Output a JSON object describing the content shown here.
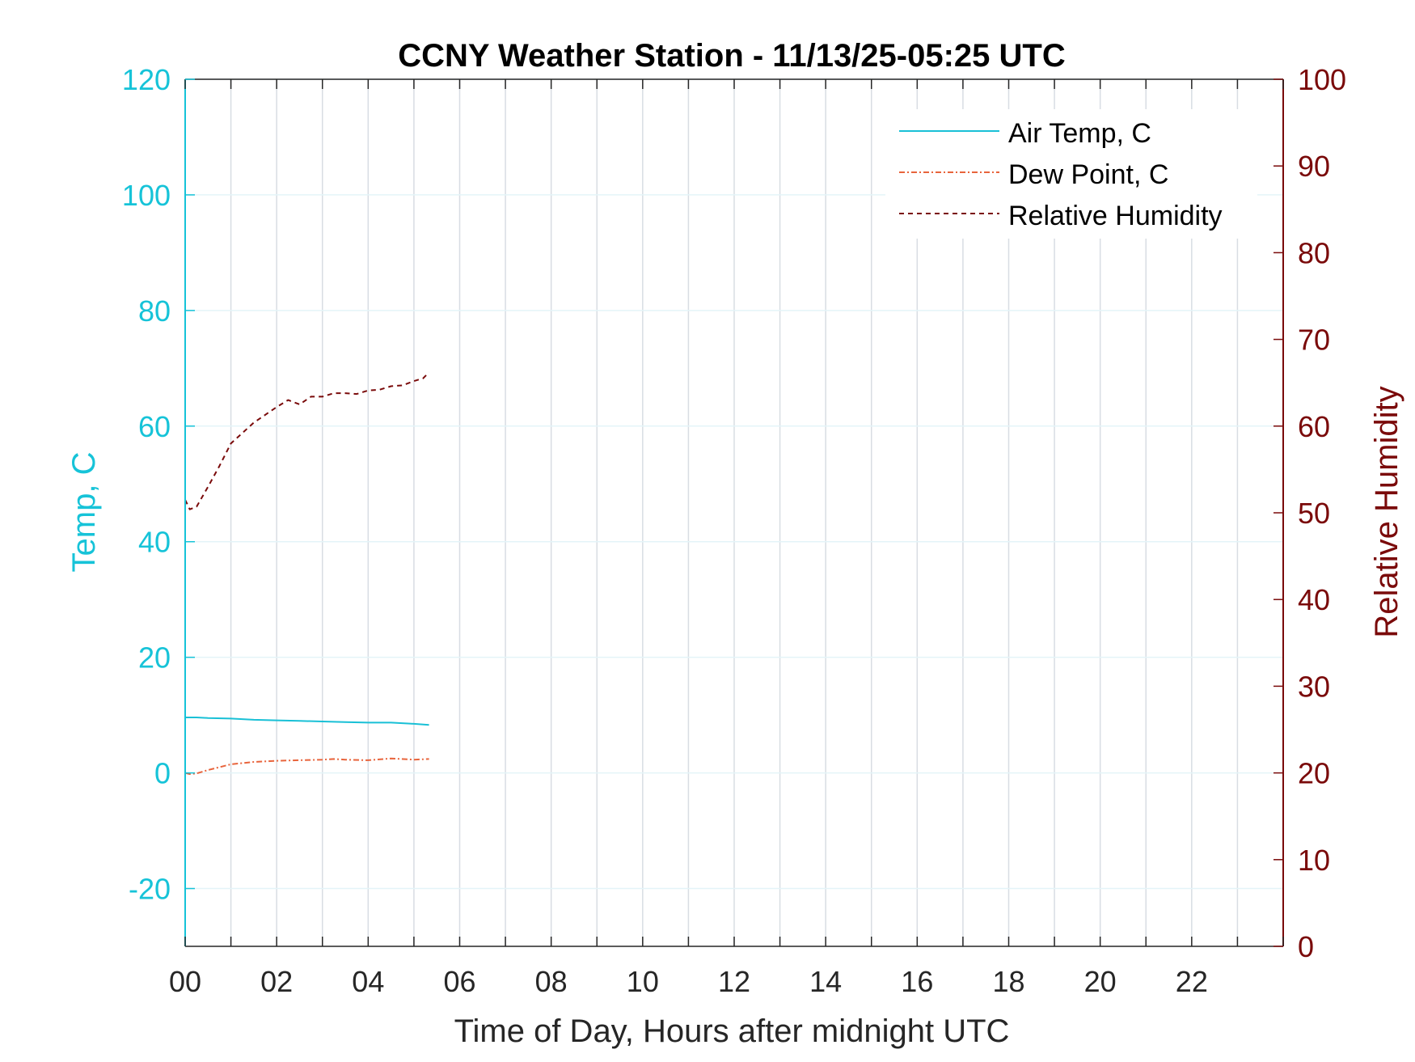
{
  "chart_data": {
    "type": "line",
    "title": "CCNY Weather Station -  11/13/25-05:25 UTC",
    "xlabel": "Time of Day, Hours after midnight UTC",
    "ylabel_left": "Temp, C",
    "ylabel_right": "Relative Humidity",
    "xlim": [
      0,
      24
    ],
    "ylim_left": [
      -30,
      120
    ],
    "ylim_right": [
      0,
      100
    ],
    "x_ticks": [
      0,
      2,
      4,
      6,
      8,
      10,
      12,
      14,
      16,
      18,
      20,
      22
    ],
    "x_tick_labels": [
      "00",
      "02",
      "04",
      "06",
      "08",
      "10",
      "12",
      "14",
      "16",
      "18",
      "20",
      "22"
    ],
    "y_left_ticks": [
      -20,
      0,
      20,
      40,
      60,
      80,
      100,
      120
    ],
    "y_left_tick_labels": [
      "-20",
      "0",
      "20",
      "40",
      "60",
      "80",
      "100",
      "120"
    ],
    "y_right_ticks": [
      0,
      10,
      20,
      30,
      40,
      50,
      60,
      70,
      80,
      90,
      100
    ],
    "y_right_tick_labels": [
      "0",
      "10",
      "20",
      "30",
      "40",
      "50",
      "60",
      "70",
      "80",
      "90",
      "100"
    ],
    "grid": true,
    "legend_position": "top-right",
    "colors": {
      "left_axis": "#16c3d8",
      "right_axis": "#7a0a0a",
      "air_temp": "#19c0d6",
      "dew_point": "#e8643c",
      "humidity": "#7a0a0a",
      "grid": "#d8dde3",
      "frame": "#262626"
    },
    "series": [
      {
        "name": "Air Temp, C",
        "axis": "left",
        "style": "solid",
        "x": [
          0.0,
          0.25,
          0.5,
          1.0,
          1.5,
          2.0,
          2.5,
          3.0,
          3.5,
          4.0,
          4.5,
          5.0,
          5.33
        ],
        "y": [
          9.6,
          9.6,
          9.5,
          9.4,
          9.2,
          9.1,
          9.0,
          8.9,
          8.8,
          8.7,
          8.7,
          8.5,
          8.3
        ]
      },
      {
        "name": "Dew Point, C",
        "axis": "left",
        "style": "dashdot",
        "x": [
          0.0,
          0.1,
          0.25,
          0.5,
          0.75,
          1.0,
          1.25,
          1.5,
          2.0,
          2.5,
          3.0,
          3.25,
          3.5,
          4.0,
          4.5,
          5.0,
          5.33
        ],
        "y": [
          0.0,
          -0.2,
          -0.1,
          0.5,
          1.0,
          1.5,
          1.7,
          1.9,
          2.1,
          2.2,
          2.3,
          2.4,
          2.3,
          2.2,
          2.5,
          2.3,
          2.4
        ]
      },
      {
        "name": "Relative Humidity",
        "axis": "right",
        "style": "dashed",
        "x": [
          0.0,
          0.1,
          0.25,
          0.5,
          0.75,
          1.0,
          1.25,
          1.5,
          1.75,
          2.0,
          2.25,
          2.5,
          2.75,
          3.0,
          3.25,
          3.5,
          3.75,
          4.0,
          4.25,
          4.5,
          4.75,
          5.0,
          5.2,
          5.33
        ],
        "y": [
          51.5,
          50.4,
          50.7,
          53.0,
          55.4,
          58.0,
          59.2,
          60.4,
          61.3,
          62.2,
          63.0,
          62.5,
          63.4,
          63.4,
          63.8,
          63.8,
          63.7,
          64.1,
          64.2,
          64.6,
          64.7,
          65.2,
          65.5,
          66.2
        ]
      }
    ]
  }
}
